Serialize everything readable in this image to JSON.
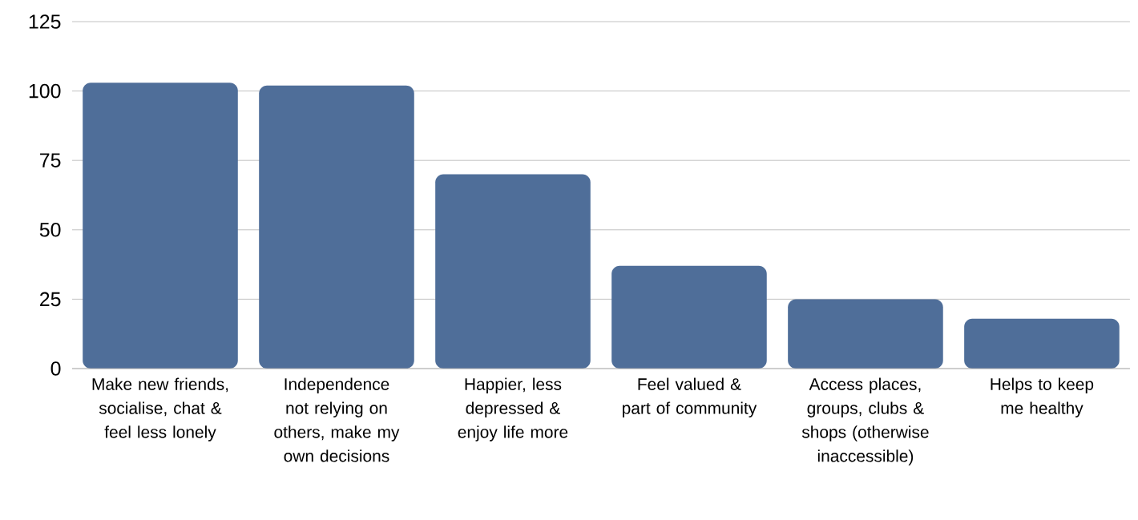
{
  "chart_data": {
    "type": "bar",
    "categories": [
      "Make new friends, socialise, chat & feel less lonely",
      "Independence not relying on others, make my own decisions",
      "Happier, less depressed & enjoy life more",
      "Feel valued & part of community",
      "Access places, groups, clubs & shops (otherwise inaccessible)",
      "Helps to keep me healthy"
    ],
    "values": [
      103,
      102,
      70,
      37,
      25,
      18
    ],
    "color": "#4f6e99",
    "ylim": [
      0,
      125
    ],
    "yticks": [
      0,
      25,
      50,
      75,
      100,
      125
    ],
    "grid": "y"
  }
}
